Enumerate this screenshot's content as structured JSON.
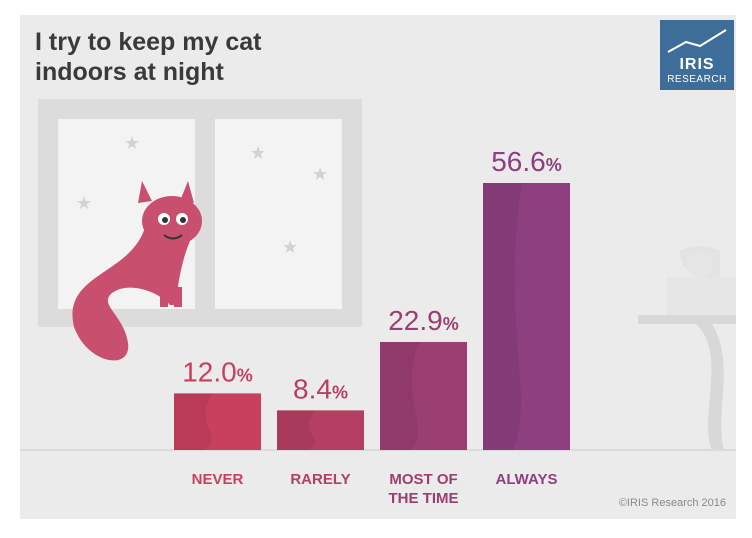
{
  "title": [
    "I try to keep my cat",
    "indoors at night"
  ],
  "logo": {
    "name": "IRIS",
    "sub": "RESEARCH"
  },
  "copyright": "©IRIS Research 2016",
  "colors": {
    "never": "#c8405e",
    "rarely": "#b53f62",
    "most": "#9a3f70",
    "always": "#8e3f80"
  },
  "chart_data": {
    "type": "bar",
    "title": "I try to keep my cat indoors at night",
    "xlabel": "",
    "ylabel": "",
    "categories": [
      "NEVER",
      "RARELY",
      "MOST OF THE TIME",
      "ALWAYS"
    ],
    "values": [
      12.0,
      8.4,
      22.9,
      56.6
    ],
    "value_labels": [
      "12.0",
      "8.4",
      "22.9",
      "56.6"
    ],
    "unit": "%",
    "ylim": [
      0,
      56.6
    ],
    "grid": false,
    "legend": "none"
  }
}
